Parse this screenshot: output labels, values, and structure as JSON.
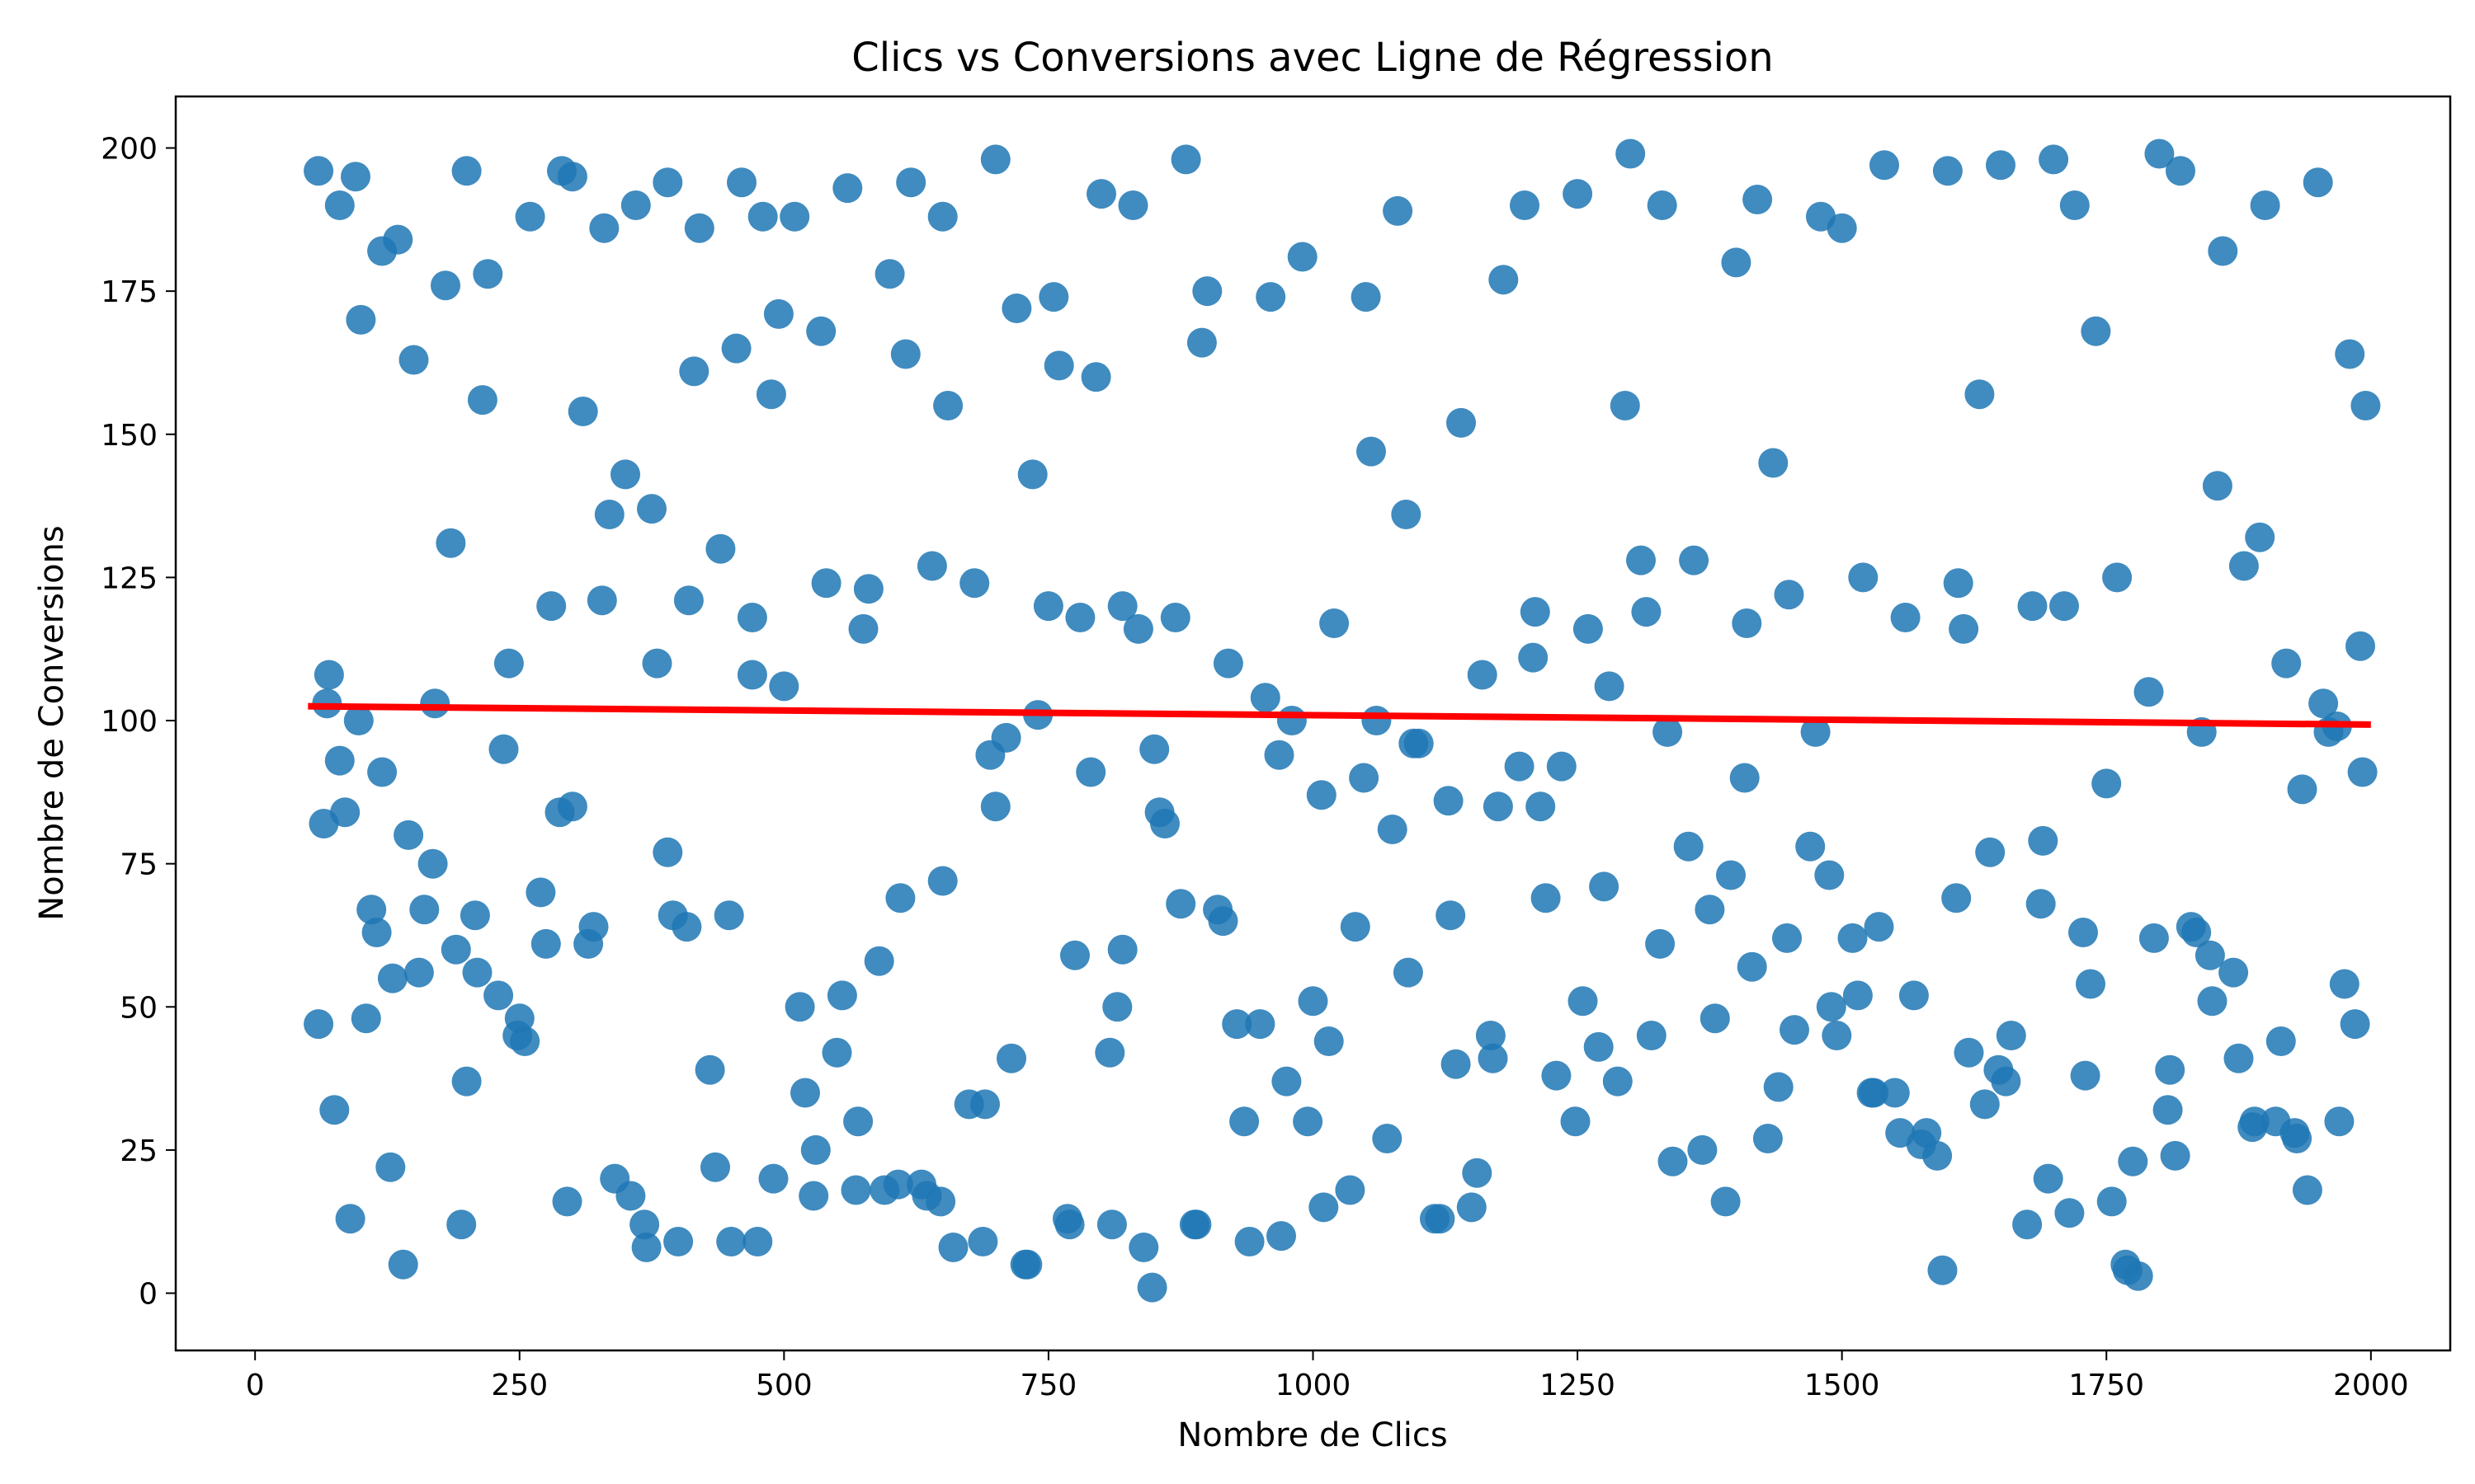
{
  "chart_data": {
    "type": "scatter",
    "title": "Clics vs Conversions avec Ligne de Régression",
    "xlabel": "Nombre de Clics",
    "ylabel": "Nombre de Conversions",
    "xlim": [
      -75,
      2075
    ],
    "ylim": [
      -10,
      209
    ],
    "x_ticks": [
      0,
      250,
      500,
      750,
      1000,
      1250,
      1500,
      1750,
      2000
    ],
    "x_tick_labels": [
      "0",
      "250",
      "500",
      "750",
      "1000",
      "1250",
      "1500",
      "1750",
      "2000"
    ],
    "y_ticks": [
      0,
      25,
      50,
      75,
      100,
      125,
      150,
      175,
      200
    ],
    "y_tick_labels": [
      "0",
      "25",
      "50",
      "75",
      "100",
      "125",
      "150",
      "175",
      "200"
    ],
    "grid": false,
    "legend": "none",
    "colors": {
      "points": "#1f77b4",
      "regression": "#ff0000"
    },
    "series": [
      {
        "kind": "scatter",
        "x": [
          60,
          65,
          80,
          95,
          100,
          120,
          135,
          150,
          180,
          200,
          220,
          260,
          290,
          300,
          330,
          360,
          390,
          420,
          460,
          480,
          510,
          560,
          600,
          620,
          650,
          700,
          720,
          760,
          800,
          830,
          880,
          900,
          960,
          990,
          1050,
          1080,
          1140,
          1180,
          1200,
          1250,
          1300,
          1330,
          1400,
          1420,
          1480,
          1500,
          1540,
          1600,
          1630,
          1650,
          1700,
          1720,
          1740,
          1800,
          1820,
          1860,
          1900,
          1950,
          1980,
          1995,
          70,
          110,
          130,
          170,
          210,
          240,
          280,
          310,
          350,
          380,
          410,
          440,
          470,
          500,
          540,
          580,
          610,
          640,
          680,
          710,
          740,
          780,
          820,
          850,
          870,
          920,
          980,
          1020,
          1060,
          1100,
          1160,
          1210,
          1260,
          1310,
          1360,
          1410,
          1450,
          1520,
          1560,
          1610,
          1680,
          1710,
          1760,
          1790,
          1840,
          1880,
          1920,
          1960,
          1990,
          60,
          90,
          140,
          190,
          230,
          270,
          320,
          370,
          400,
          450,
          490,
          530,
          570,
          630,
          660,
          690,
          730,
          770,
          810,
          840,
          890,
          940,
          970,
          1010,
          1070,
          1120,
          1150,
          1230,
          1270,
          1320,
          1380,
          1440,
          1490,
          1530,
          1580,
          1620,
          1660,
          1730,
          1770,
          1810,
          1850,
          1890,
          1930,
          1970,
          80,
          120,
          160,
          200,
          250,
          300,
          340,
          390,
          430,
          470,
          520,
          550,
          590,
          650,
          700,
          750,
          790,
          820,
          860,
          910,
          950,
          1000,
          1040,
          1090,
          1130,
          1170,
          1220,
          1280,
          1340,
          1390,
          1430,
          1470,
          1510,
          1550,
          1590,
          1640,
          1690,
          1750,
          1780,
          1830,
          1870,
          1910,
          1940,
          1985,
          75,
          105,
          145,
          185,
          215,
          255,
          295,
          335,
          375,
          415,
          455,
          495,
          535,
          575,
          615,
          655,
          695,
          735,
          775,
          815,
          855,
          895,
          935,
          975,
          1015,
          1055,
          1095,
          1135,
          1175,
          1215,
          1255,
          1295,
          1335,
          1375,
          1415,
          1455,
          1495,
          1535,
          1575,
          1615,
          1655,
          1695,
          1735,
          1775,
          1815,
          1855,
          1895,
          1935,
          1975,
          68,
          98,
          128,
          168,
          208,
          248,
          288,
          328,
          368,
          408,
          448,
          488,
          528,
          568,
          608,
          648,
          688,
          728,
          768,
          808,
          848,
          888,
          928,
          968,
          1008,
          1048,
          1088,
          1128,
          1168,
          1208,
          1248,
          1288,
          1328,
          1368,
          1408,
          1448,
          1488,
          1528,
          1568,
          1608,
          1648,
          1688,
          1728,
          1768,
          1808,
          1848,
          1888,
          1928,
          1968,
          85,
          115,
          155,
          195,
          235,
          275,
          315,
          355,
          395,
          435,
          475,
          515,
          555,
          595,
          635,
          675,
          715,
          755,
          795,
          835,
          875,
          915,
          955,
          995,
          1035,
          1075,
          1115,
          1155,
          1195,
          1235,
          1275,
          1315,
          1355,
          1395,
          1435,
          1475,
          1515,
          1555,
          1595,
          1635,
          1675,
          1715,
          1755,
          1795,
          1835,
          1875,
          1915,
          1955,
          1992
        ],
        "y": [
          196,
          82,
          190,
          195,
          170,
          182,
          184,
          163,
          176,
          196,
          178,
          188,
          196,
          195,
          186,
          190,
          194,
          186,
          194,
          188,
          188,
          193,
          178,
          194,
          188,
          198,
          172,
          162,
          192,
          190,
          198,
          175,
          174,
          181,
          174,
          189,
          152,
          177,
          190,
          192,
          199,
          190,
          180,
          191,
          188,
          186,
          197,
          196,
          157,
          197,
          198,
          190,
          168,
          199,
          196,
          182,
          190,
          194,
          164,
          155,
          108,
          67,
          55,
          103,
          56,
          110,
          120,
          154,
          143,
          110,
          121,
          130,
          118,
          106,
          124,
          123,
          69,
          127,
          124,
          97,
          101,
          118,
          120,
          95,
          118,
          110,
          100,
          117,
          100,
          96,
          108,
          119,
          116,
          128,
          128,
          117,
          122,
          125,
          118,
          124,
          120,
          120,
          125,
          105,
          98,
          127,
          110,
          98,
          113,
          47,
          13,
          5,
          60,
          52,
          70,
          64,
          8,
          9,
          9,
          20,
          25,
          30,
          19,
          8,
          33,
          5,
          12,
          12,
          8,
          12,
          9,
          10,
          15,
          27,
          13,
          15,
          38,
          43,
          45,
          48,
          36,
          50,
          35,
          28,
          42,
          45,
          38,
          4,
          39,
          51,
          30,
          27,
          30,
          93,
          91,
          67,
          37,
          48,
          85,
          20,
          77,
          39,
          108,
          35,
          42,
          58,
          72,
          85,
          120,
          91,
          60,
          82,
          67,
          47,
          51,
          64,
          56,
          66,
          41,
          69,
          106,
          23,
          16,
          27,
          78,
          62,
          35,
          24,
          77,
          79,
          89,
          3,
          64,
          56,
          30,
          18,
          47,
          32,
          48,
          80,
          131,
          156,
          44,
          16,
          136,
          137,
          161,
          165,
          171,
          168,
          116,
          164,
          155,
          94,
          143,
          59,
          50,
          84,
          166,
          30,
          37,
          44,
          147,
          96,
          40,
          85,
          85,
          51,
          155,
          98,
          67,
          57,
          46,
          45,
          64,
          26,
          116,
          37,
          20,
          54,
          23,
          24,
          141,
          132,
          88,
          54,
          103,
          100,
          22,
          75,
          66,
          45,
          84,
          121,
          12,
          64,
          66,
          157,
          17,
          18,
          19,
          16,
          9,
          5,
          13,
          42,
          1,
          12,
          47,
          94,
          87,
          90,
          136,
          86,
          45,
          111,
          30,
          37,
          61,
          25,
          90,
          62,
          73,
          35,
          52,
          69,
          39,
          68,
          63,
          5,
          32,
          59,
          29,
          28,
          99,
          84,
          63,
          56,
          12,
          95,
          61,
          61,
          17,
          66,
          22,
          9,
          50,
          52,
          18,
          17,
          33,
          41,
          174,
          160,
          116,
          68,
          65,
          104,
          30,
          18,
          81,
          13,
          21,
          92,
          92,
          71,
          119,
          78,
          73,
          145,
          98,
          52,
          28,
          4,
          33,
          12,
          14,
          16,
          62,
          63,
          41,
          44,
          103,
          91
        ]
      },
      {
        "kind": "regression",
        "x": [
          50,
          2000
        ],
        "y": [
          102.5,
          99.3
        ]
      }
    ]
  }
}
